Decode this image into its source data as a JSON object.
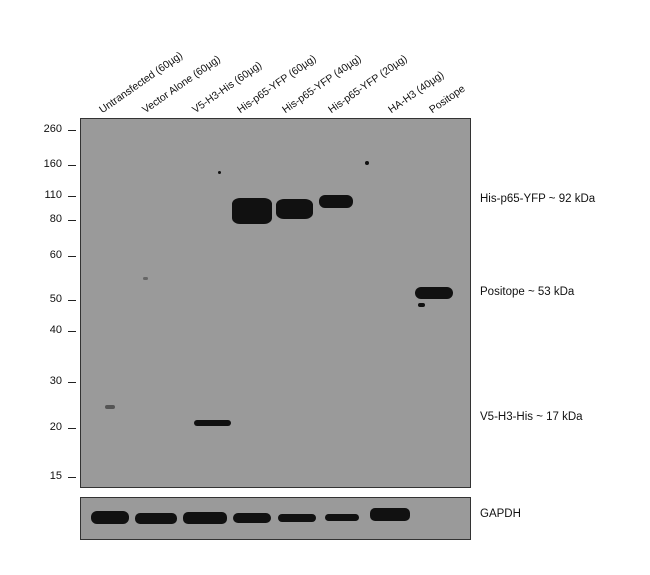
{
  "lanes": [
    "Untransfected (60µg)",
    "Vector Alone (60µg)",
    "V5-H3-His (60µg)",
    "His-p65-YFP (60µg)",
    "His-p65-YFP (40µg)",
    "His-p65-YFP (20µg)",
    "HA-H3 (40µg)",
    "Positope"
  ],
  "markers": [
    "260",
    "160",
    "110",
    "80",
    "60",
    "50",
    "40",
    "30",
    "20",
    "15"
  ],
  "annotations": {
    "p65": "His-p65-YFP ~ 92 kDa",
    "positope": "Positope ~ 53 kDa",
    "v5h3": "V5-H3-His ~ 17 kDa",
    "gapdh": "GAPDH"
  },
  "colors": {
    "membrane": "#9a9a9a",
    "band": "#111111"
  }
}
